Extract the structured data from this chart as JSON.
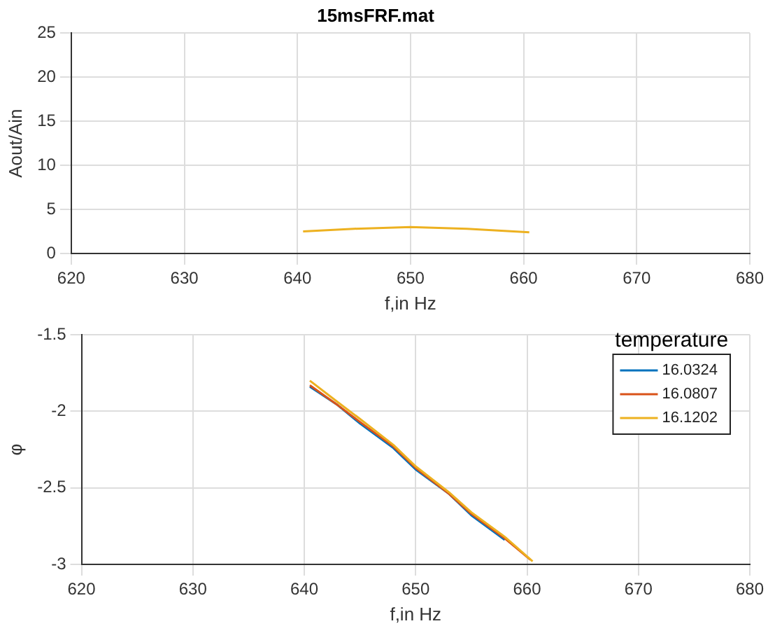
{
  "chart_data": [
    {
      "type": "line",
      "title": "15msFRF.mat",
      "xlabel": "f,in Hz",
      "ylabel": "Aout/Ain",
      "xlim": [
        620,
        680
      ],
      "xticks": [
        620,
        630,
        640,
        650,
        660,
        670,
        680
      ],
      "ylim": [
        0,
        25
      ],
      "yticks": [
        0,
        5,
        10,
        15,
        20,
        25
      ],
      "grid": true,
      "legend": false,
      "marker": "none",
      "series": [
        {
          "color": "#edb120",
          "x": [
            640.5,
            645,
            650,
            655,
            660.5
          ],
          "values": [
            2.5,
            2.8,
            3.0,
            2.8,
            2.4
          ]
        }
      ]
    },
    {
      "type": "line",
      "xlabel": "f,in Hz",
      "ylabel": "φ",
      "legend_title": "temperature",
      "xlim": [
        620,
        680
      ],
      "xticks": [
        620,
        630,
        640,
        650,
        660,
        670,
        680
      ],
      "ylim": [
        -3,
        -1.5
      ],
      "yticks": [
        -3,
        -2.5,
        -2,
        -1.5
      ],
      "grid": true,
      "legend": "top right",
      "marker": "none",
      "series": [
        {
          "name": "16.0324",
          "color": "#0072bd",
          "x": [
            640.5,
            643,
            645,
            648,
            650,
            653,
            655,
            658
          ],
          "values": [
            -1.84,
            -1.96,
            -2.08,
            -2.24,
            -2.38,
            -2.54,
            -2.68,
            -2.84
          ]
        },
        {
          "name": "16.0807",
          "color": "#d95319",
          "x": [
            640.5,
            643,
            645,
            648,
            650,
            653,
            655,
            658,
            660.3
          ],
          "values": [
            -1.83,
            -1.96,
            -2.07,
            -2.23,
            -2.37,
            -2.54,
            -2.67,
            -2.83,
            -2.97
          ]
        },
        {
          "name": "16.1202",
          "color": "#edb120",
          "x": [
            640.5,
            643,
            645,
            648,
            650,
            653,
            655,
            658,
            660.5
          ],
          "values": [
            -1.8,
            -1.94,
            -2.05,
            -2.22,
            -2.36,
            -2.53,
            -2.66,
            -2.82,
            -2.98
          ]
        }
      ]
    }
  ]
}
